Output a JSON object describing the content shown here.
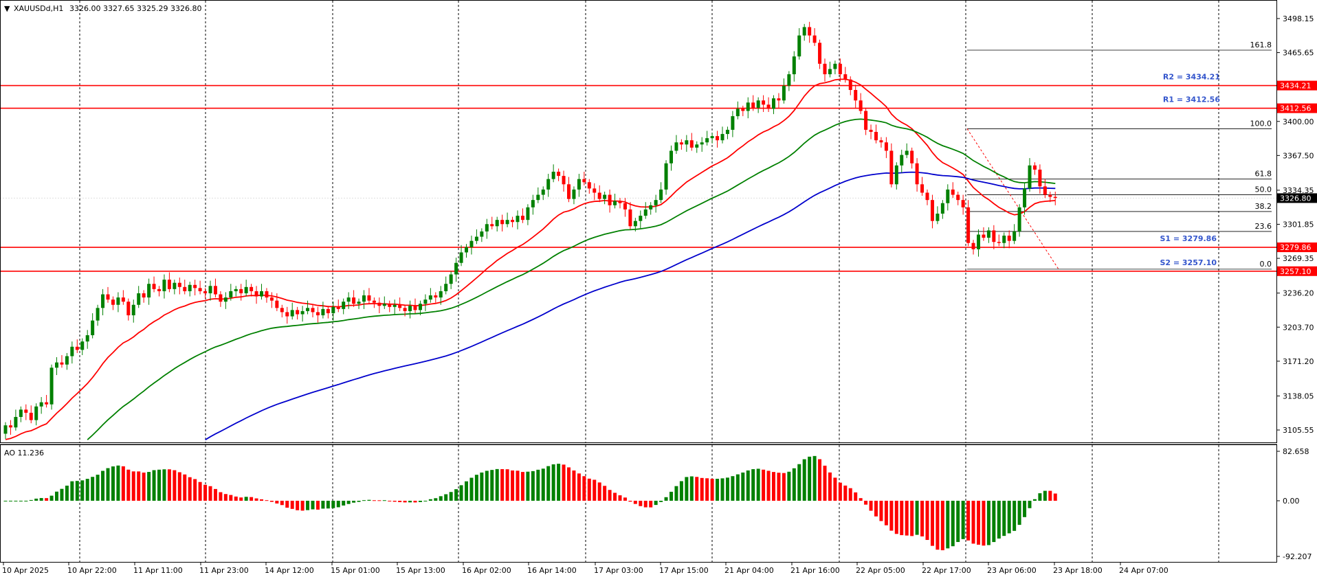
{
  "header": {
    "symbol": "XAUUSDd,H1",
    "ohlc": "3326.00 3327.65 3325.29 3326.80"
  },
  "oscillator": {
    "label": "AO 11.236",
    "axis_labels": [
      "82.658",
      "0.00",
      "-92.207"
    ]
  },
  "price_axis": {
    "ticks": [
      "3498.15",
      "3465.65",
      "3400.00",
      "3367.50",
      "3334.35",
      "3301.85",
      "3269.35",
      "3236.20",
      "3203.70",
      "3171.20",
      "3138.05",
      "3105.55"
    ],
    "current_price": "3326.80"
  },
  "levels": [
    {
      "name": "R2",
      "label": "R2 = 3434.21",
      "axis": "3434.21",
      "value": 3434.21
    },
    {
      "name": "R1",
      "label": "R1 = 3412.56",
      "axis": "3412.56",
      "value": 3412.56
    },
    {
      "name": "S1",
      "label": "S1 = 3279.86",
      "axis": "3279.86",
      "value": 3279.86
    },
    {
      "name": "S2",
      "label": "S2 = 3257.10",
      "axis": "3257.10",
      "value": 3257.1
    }
  ],
  "fibonacci": [
    {
      "label": "161.8",
      "price": 3468
    },
    {
      "label": "100.0",
      "price": 3393
    },
    {
      "label": "61.8",
      "price": 3345
    },
    {
      "label": "50.0",
      "price": 3330
    },
    {
      "label": "38.2",
      "price": 3314
    },
    {
      "label": "23.6",
      "price": 3295
    },
    {
      "label": "0.0",
      "price": 3259
    }
  ],
  "time_axis": [
    "10 Apr 2025",
    "10 Apr 22:00",
    "11 Apr 11:00",
    "11 Apr 23:00",
    "14 Apr 12:00",
    "15 Apr 01:00",
    "15 Apr 13:00",
    "16 Apr 02:00",
    "16 Apr 14:00",
    "17 Apr 03:00",
    "17 Apr 15:00",
    "21 Apr 04:00",
    "21 Apr 16:00",
    "22 Apr 05:00",
    "22 Apr 17:00",
    "23 Apr 06:00",
    "23 Apr 18:00",
    "24 Apr 07:00"
  ],
  "colors": {
    "bull": "#008000",
    "bear": "#ff0000",
    "ma_fast": "#ff0000",
    "ma_mid": "#008000",
    "ma_slow": "#0000cc",
    "level_line": "#ff0000",
    "level_text": "#3355cc",
    "grid": "#000000"
  },
  "chart_data": {
    "type": "candlestick",
    "ylim": [
      3090,
      3515
    ],
    "series_closes": [
      3110,
      3108,
      3118,
      3125,
      3122,
      3115,
      3128,
      3132,
      3130,
      3165,
      3170,
      3168,
      3176,
      3185,
      3182,
      3190,
      3196,
      3210,
      3222,
      3235,
      3230,
      3225,
      3232,
      3228,
      3215,
      3225,
      3236,
      3232,
      3245,
      3240,
      3238,
      3249,
      3240,
      3246,
      3242,
      3238,
      3244,
      3241,
      3238,
      3236,
      3243,
      3235,
      3228,
      3232,
      3238,
      3240,
      3236,
      3242,
      3238,
      3233,
      3238,
      3232,
      3229,
      3222,
      3218,
      3214,
      3220,
      3216,
      3219,
      3222,
      3218,
      3215,
      3221,
      3217,
      3223,
      3221,
      3228,
      3232,
      3226,
      3228,
      3234,
      3229,
      3227,
      3224,
      3226,
      3223,
      3225,
      3222,
      3219,
      3224,
      3220,
      3226,
      3230,
      3234,
      3232,
      3238,
      3245,
      3254,
      3265,
      3275,
      3280,
      3286,
      3290,
      3295,
      3302,
      3300,
      3306,
      3302,
      3306,
      3304,
      3310,
      3306,
      3318,
      3325,
      3330,
      3335,
      3345,
      3352,
      3348,
      3340,
      3326,
      3335,
      3345,
      3342,
      3336,
      3332,
      3326,
      3330,
      3320,
      3324,
      3322,
      3316,
      3300,
      3305,
      3310,
      3316,
      3320,
      3325,
      3335,
      3360,
      3372,
      3380,
      3378,
      3382,
      3375,
      3378,
      3380,
      3384,
      3386,
      3382,
      3388,
      3392,
      3405,
      3412,
      3410,
      3418,
      3413,
      3420,
      3416,
      3412,
      3422,
      3420,
      3434,
      3445,
      3462,
      3482,
      3490,
      3482,
      3475,
      3455,
      3445,
      3450,
      3455,
      3445,
      3440,
      3430,
      3420,
      3410,
      3392,
      3390,
      3382,
      3380,
      3372,
      3340,
      3358,
      3368,
      3372,
      3360,
      3340,
      3332,
      3325,
      3305,
      3312,
      3322,
      3335,
      3330,
      3325,
      3318,
      3284,
      3278,
      3292,
      3289,
      3296,
      3285,
      3284,
      3291,
      3286,
      3295,
      3318,
      3336,
      3358,
      3354,
      3338,
      3330,
      3328,
      3327
    ],
    "moving_averages": [
      {
        "color": "#ff0000",
        "period": "fast"
      },
      {
        "color": "#008000",
        "period": "mid"
      },
      {
        "color": "#0000cc",
        "period": "slow"
      }
    ]
  }
}
